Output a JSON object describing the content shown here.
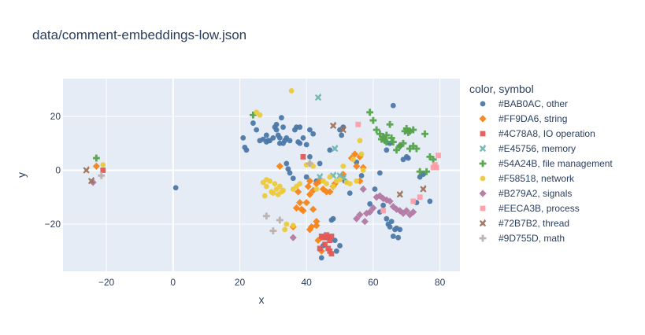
{
  "chart_data": {
    "type": "scatter",
    "title": "data/comment-embeddings-low.json",
    "xlabel": "x",
    "ylabel": "y",
    "xlim": [
      -33,
      86
    ],
    "ylim": [
      -37.5,
      34
    ],
    "xticks": [
      -20,
      0,
      20,
      40,
      60,
      80
    ],
    "yticks": [
      -20,
      0,
      20
    ],
    "xtick_labels": [
      "−20",
      "0",
      "20",
      "40",
      "60",
      "80"
    ],
    "ytick_labels": [
      "−20",
      "0",
      "20"
    ],
    "grid": true,
    "legend_position": "right",
    "legend_title": "color, symbol",
    "series": [
      {
        "name": "#BAB0AC, other",
        "color": "#4C78A8",
        "symbol": "circle",
        "points": [
          [
            0.8,
            -6.5
          ],
          [
            21,
            12
          ],
          [
            21.5,
            8.5
          ],
          [
            22,
            7.5
          ],
          [
            24,
            17.5
          ],
          [
            25,
            15
          ],
          [
            26,
            11
          ],
          [
            27,
            11.5
          ],
          [
            28,
            10.5
          ],
          [
            28,
            13
          ],
          [
            28.5,
            11
          ],
          [
            29,
            11
          ],
          [
            30,
            12
          ],
          [
            30.5,
            16
          ],
          [
            31,
            15
          ],
          [
            31,
            17
          ],
          [
            31.5,
            13
          ],
          [
            32,
            12
          ],
          [
            32,
            10
          ],
          [
            32.5,
            19.5
          ],
          [
            33,
            16
          ],
          [
            33,
            10
          ],
          [
            33.5,
            11
          ],
          [
            34,
            12
          ],
          [
            34,
            2.5
          ],
          [
            34.5,
            0.5
          ],
          [
            35,
            11
          ],
          [
            35,
            -1
          ],
          [
            36,
            -3
          ],
          [
            36.5,
            15
          ],
          [
            37,
            16
          ],
          [
            37.5,
            10.5
          ],
          [
            38,
            16
          ],
          [
            38,
            10
          ],
          [
            39,
            12
          ],
          [
            40,
            9.5
          ],
          [
            40,
            -2.5
          ],
          [
            41,
            15
          ],
          [
            41,
            5
          ],
          [
            42,
            13.5
          ],
          [
            43,
            -4
          ],
          [
            44,
            2.5
          ],
          [
            44.5,
            -32.5
          ],
          [
            45,
            -28
          ],
          [
            46,
            -25
          ],
          [
            47,
            7.5
          ],
          [
            47.5,
            -18.5
          ],
          [
            48,
            -18
          ],
          [
            48.5,
            -26
          ],
          [
            49,
            -30
          ],
          [
            50,
            -28
          ],
          [
            50,
            15
          ],
          [
            50.5,
            13
          ],
          [
            51,
            16
          ],
          [
            51.5,
            -4
          ],
          [
            53,
            -8.5
          ],
          [
            55,
            3
          ],
          [
            56.5,
            -2
          ],
          [
            59,
            -12.5
          ],
          [
            60.5,
            -7
          ],
          [
            62,
            -1
          ],
          [
            62,
            -15.5
          ],
          [
            63,
            -13
          ],
          [
            64,
            7.5
          ],
          [
            64,
            -18
          ],
          [
            64.5,
            -20
          ],
          [
            65,
            10
          ],
          [
            65,
            -21
          ],
          [
            65.5,
            -19
          ],
          [
            66,
            -24.5
          ],
          [
            66,
            24
          ],
          [
            66.5,
            -22
          ],
          [
            67,
            -21.5
          ],
          [
            67.5,
            -25
          ],
          [
            68,
            -22
          ],
          [
            68,
            9
          ],
          [
            69,
            4
          ],
          [
            70,
            5
          ],
          [
            70.5,
            4.5
          ],
          [
            74,
            -2.5
          ],
          [
            75,
            -1.5
          ],
          [
            77,
            -11.5
          ],
          [
            73,
            -12
          ]
        ]
      },
      {
        "name": "#FF9DA6, string",
        "color": "#F58518",
        "symbol": "diamond",
        "points": [
          [
            -23,
            1.5
          ],
          [
            32,
            1.5
          ],
          [
            36,
            -21
          ],
          [
            37,
            -14
          ],
          [
            37.5,
            -8
          ],
          [
            38,
            -12
          ],
          [
            38.5,
            -14.5
          ],
          [
            39,
            -15
          ],
          [
            40,
            -12
          ],
          [
            40.5,
            -6
          ],
          [
            41,
            -4
          ],
          [
            41,
            -9
          ],
          [
            41,
            -22
          ],
          [
            41.5,
            -21
          ],
          [
            42,
            -14.5
          ],
          [
            42,
            -7.5
          ],
          [
            43,
            -5
          ],
          [
            43,
            -19
          ],
          [
            43,
            -20.5
          ],
          [
            43.5,
            -26
          ],
          [
            44,
            -4
          ],
          [
            44.5,
            -30
          ],
          [
            45,
            -7
          ],
          [
            46,
            -8
          ],
          [
            47,
            -8
          ],
          [
            48,
            -6
          ],
          [
            48.5,
            -5
          ],
          [
            51,
            -1.5
          ],
          [
            53.5,
            4.5
          ],
          [
            54.5,
            6
          ],
          [
            55,
            1.5
          ],
          [
            56,
            5
          ],
          [
            57,
            1
          ],
          [
            56,
            -4
          ]
        ]
      },
      {
        "name": "#4C78A8, IO operation",
        "color": "#E45756",
        "symbol": "square",
        "points": [
          [
            -21,
            0
          ],
          [
            39,
            5
          ],
          [
            44,
            -29
          ],
          [
            44.5,
            -24.5
          ],
          [
            45,
            -25
          ],
          [
            45.5,
            -27.5
          ],
          [
            46,
            -24
          ],
          [
            46.5,
            -25
          ],
          [
            46.5,
            -29
          ],
          [
            47,
            -30
          ],
          [
            47.5,
            -31
          ],
          [
            47,
            -26
          ],
          [
            47.5,
            -24.5
          ]
        ]
      },
      {
        "name": "#E45756, memory",
        "color": "#72B7B2",
        "symbol": "x",
        "points": [
          [
            43.5,
            27
          ],
          [
            44,
            -2.5
          ],
          [
            48,
            -2
          ],
          [
            48.5,
            8
          ],
          [
            50,
            -2
          ],
          [
            51,
            -3
          ]
        ]
      },
      {
        "name": "#54A24B, file management",
        "color": "#54A24B",
        "symbol": "cross",
        "points": [
          [
            -23,
            4.5
          ],
          [
            24,
            20.5
          ],
          [
            59,
            21.5
          ],
          [
            60,
            18.5
          ],
          [
            61,
            15
          ],
          [
            62,
            13.5
          ],
          [
            62.5,
            11.5
          ],
          [
            63,
            12.5
          ],
          [
            63.5,
            11
          ],
          [
            64,
            13
          ],
          [
            64,
            10.5
          ],
          [
            65,
            17
          ],
          [
            65.5,
            12
          ],
          [
            66,
            10.5
          ],
          [
            67,
            7.5
          ],
          [
            68,
            9
          ],
          [
            69,
            10
          ],
          [
            69.5,
            14.5
          ],
          [
            70,
            15.5
          ],
          [
            70.5,
            14
          ],
          [
            71,
            14.5
          ],
          [
            71,
            8
          ],
          [
            72,
            15
          ],
          [
            72,
            9
          ],
          [
            73,
            8
          ],
          [
            74,
            -0.5
          ],
          [
            75.5,
            13.5
          ],
          [
            76,
            -0.5
          ],
          [
            77,
            5
          ],
          [
            78,
            4
          ]
        ]
      },
      {
        "name": "#F58518, network",
        "color": "#ECCA3B",
        "symbol": "circle",
        "points": [
          [
            -21,
            2
          ],
          [
            25,
            21.5
          ],
          [
            26,
            20.5
          ],
          [
            27,
            -4.5
          ],
          [
            27.5,
            -9.5
          ],
          [
            28,
            -3.5
          ],
          [
            28,
            -6
          ],
          [
            29,
            -4
          ],
          [
            29.5,
            -8
          ],
          [
            30,
            -8.5
          ],
          [
            30.5,
            -5
          ],
          [
            31,
            -7
          ],
          [
            31.5,
            -9
          ],
          [
            32,
            -6
          ],
          [
            32.5,
            -8
          ],
          [
            33,
            -7.5
          ],
          [
            33.5,
            -22
          ],
          [
            34,
            -20
          ],
          [
            35.5,
            29.5
          ],
          [
            36,
            -7
          ],
          [
            36,
            -20.5
          ],
          [
            37,
            -6
          ],
          [
            38,
            -5
          ],
          [
            40,
            2
          ],
          [
            41,
            2.5
          ],
          [
            42,
            1.5
          ],
          [
            43,
            -7
          ],
          [
            45,
            -4
          ],
          [
            46,
            -5
          ],
          [
            47,
            -2.5
          ],
          [
            48,
            -6
          ],
          [
            49,
            -4
          ],
          [
            50,
            -3.5
          ],
          [
            51,
            1.5
          ],
          [
            52,
            -4.5
          ],
          [
            53,
            -5
          ],
          [
            54,
            4
          ],
          [
            55,
            -4
          ],
          [
            56,
            11
          ],
          [
            57,
            0
          ],
          [
            56.5,
            6
          ]
        ]
      },
      {
        "name": "#B279A2, signals",
        "color": "#B279A2",
        "symbol": "diamond",
        "points": [
          [
            -24,
            -4.5
          ],
          [
            36,
            -25
          ],
          [
            55,
            -18
          ],
          [
            56,
            -16.5
          ],
          [
            57,
            -7
          ],
          [
            57.5,
            -19
          ],
          [
            58,
            -16
          ],
          [
            59,
            -15.5
          ],
          [
            60,
            -14
          ],
          [
            61,
            -10
          ],
          [
            62,
            -9.5
          ],
          [
            63,
            -10.5
          ],
          [
            64,
            -11
          ],
          [
            65,
            -11.5
          ],
          [
            66,
            -13.5
          ],
          [
            67,
            -14.5
          ],
          [
            68,
            -15
          ],
          [
            69,
            -16
          ],
          [
            70,
            -15
          ],
          [
            71,
            -16.5
          ],
          [
            72,
            -15.5
          ]
        ]
      },
      {
        "name": "#EECA3B, process",
        "color": "#FF9DA6",
        "symbol": "square",
        "points": [
          [
            55.5,
            17
          ],
          [
            63,
            -15
          ],
          [
            72,
            -11.5
          ],
          [
            74,
            -10
          ],
          [
            78,
            1
          ],
          [
            78.5,
            2
          ],
          [
            79,
            1
          ],
          [
            79.5,
            5.5
          ]
        ]
      },
      {
        "name": "#72B7B2, thread",
        "color": "#9D755D",
        "symbol": "x",
        "points": [
          [
            -26,
            0
          ],
          [
            -24.5,
            -4
          ],
          [
            48,
            16.5
          ],
          [
            51,
            15
          ],
          [
            68,
            -9
          ],
          [
            75,
            -7
          ]
        ]
      },
      {
        "name": "#9D755D, math",
        "color": "#BAB0AC",
        "symbol": "cross",
        "points": [
          [
            -21.5,
            -2
          ],
          [
            28,
            -17
          ],
          [
            30,
            -22.5
          ],
          [
            32,
            -18.5
          ],
          [
            41,
            2.5
          ]
        ]
      }
    ]
  }
}
